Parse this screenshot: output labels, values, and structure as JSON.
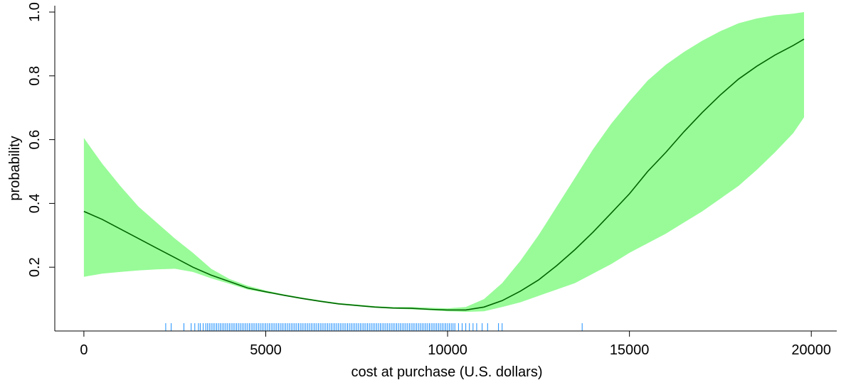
{
  "chart_data": {
    "type": "line",
    "title": "",
    "xlabel": "cost at purchase (U.S. dollars)",
    "ylabel": "probability",
    "xlim": [
      -800,
      20700
    ],
    "ylim": [
      0.0,
      1.02
    ],
    "x_ticks": [
      0,
      5000,
      10000,
      15000,
      20000
    ],
    "x_tick_labels": [
      "0",
      "5000",
      "10000",
      "15000",
      "20000"
    ],
    "y_ticks": [
      0.2,
      0.4,
      0.6,
      0.8,
      1.0
    ],
    "y_tick_labels": [
      "0.2",
      "0.4",
      "0.6",
      "0.8",
      "1.0"
    ],
    "grid": false,
    "colors": {
      "band": "#98FB98",
      "line": "#006400",
      "rug": "#1E90FF"
    },
    "series": [
      {
        "x": [
          0,
          500,
          1000,
          1500,
          2000,
          2500,
          3000,
          3500,
          4000,
          4500,
          5000,
          5500,
          6000,
          6500,
          7000,
          7500,
          8000,
          8500,
          9000,
          9500,
          10000,
          10500,
          11000,
          11500,
          12000,
          12500,
          13000,
          13500,
          14000,
          14500,
          15000,
          15500,
          16000,
          16500,
          17000,
          17500,
          18000,
          18500,
          19000,
          19500,
          19800
        ],
        "fit": [
          0.375,
          0.35,
          0.32,
          0.29,
          0.26,
          0.23,
          0.2,
          0.175,
          0.155,
          0.135,
          0.123,
          0.112,
          0.102,
          0.093,
          0.085,
          0.08,
          0.075,
          0.072,
          0.071,
          0.068,
          0.066,
          0.066,
          0.075,
          0.095,
          0.125,
          0.16,
          0.205,
          0.255,
          0.31,
          0.37,
          0.43,
          0.5,
          0.56,
          0.625,
          0.685,
          0.74,
          0.79,
          0.83,
          0.865,
          0.895,
          0.915
        ],
        "lower": [
          0.17,
          0.18,
          0.185,
          0.19,
          0.193,
          0.195,
          0.185,
          0.165,
          0.148,
          0.13,
          0.12,
          0.11,
          0.1,
          0.091,
          0.083,
          0.078,
          0.073,
          0.07,
          0.068,
          0.065,
          0.062,
          0.06,
          0.062,
          0.075,
          0.09,
          0.11,
          0.13,
          0.15,
          0.18,
          0.21,
          0.245,
          0.275,
          0.305,
          0.34,
          0.375,
          0.415,
          0.455,
          0.505,
          0.56,
          0.62,
          0.67
        ],
        "upper": [
          0.605,
          0.525,
          0.455,
          0.39,
          0.34,
          0.29,
          0.245,
          0.195,
          0.163,
          0.142,
          0.127,
          0.115,
          0.105,
          0.096,
          0.088,
          0.083,
          0.078,
          0.075,
          0.075,
          0.073,
          0.071,
          0.075,
          0.1,
          0.15,
          0.22,
          0.3,
          0.39,
          0.48,
          0.57,
          0.65,
          0.72,
          0.785,
          0.835,
          0.875,
          0.91,
          0.94,
          0.965,
          0.98,
          0.99,
          0.995,
          1.0
        ]
      }
    ],
    "rug": [
      2250,
      2400,
      2750,
      2950,
      3050,
      3150,
      3200,
      3280,
      3350,
      3400,
      3450,
      3500,
      3550,
      3600,
      3650,
      3700,
      3750,
      3800,
      3850,
      3900,
      3950,
      4000,
      4050,
      4100,
      4150,
      4200,
      4250,
      4300,
      4350,
      4400,
      4450,
      4500,
      4550,
      4600,
      4650,
      4700,
      4750,
      4800,
      4850,
      4900,
      4950,
      5000,
      5050,
      5100,
      5150,
      5200,
      5250,
      5300,
      5350,
      5400,
      5450,
      5500,
      5550,
      5600,
      5650,
      5700,
      5750,
      5800,
      5850,
      5900,
      5950,
      6000,
      6050,
      6100,
      6150,
      6200,
      6250,
      6300,
      6350,
      6400,
      6450,
      6500,
      6550,
      6600,
      6650,
      6700,
      6750,
      6800,
      6850,
      6900,
      6950,
      7000,
      7050,
      7100,
      7150,
      7200,
      7250,
      7300,
      7350,
      7400,
      7450,
      7500,
      7550,
      7600,
      7650,
      7700,
      7750,
      7800,
      7850,
      7900,
      7950,
      8000,
      8050,
      8100,
      8150,
      8200,
      8250,
      8300,
      8350,
      8400,
      8450,
      8500,
      8550,
      8600,
      8650,
      8700,
      8750,
      8800,
      8850,
      8900,
      8950,
      9000,
      9050,
      9100,
      9150,
      9200,
      9250,
      9300,
      9350,
      9400,
      9450,
      9500,
      9550,
      9600,
      9650,
      9700,
      9750,
      9800,
      9850,
      9900,
      9950,
      10000,
      10050,
      10100,
      10150,
      10200,
      10300,
      10400,
      10500,
      10600,
      10700,
      10800,
      10950,
      11100,
      11400,
      11500,
      13700
    ]
  }
}
